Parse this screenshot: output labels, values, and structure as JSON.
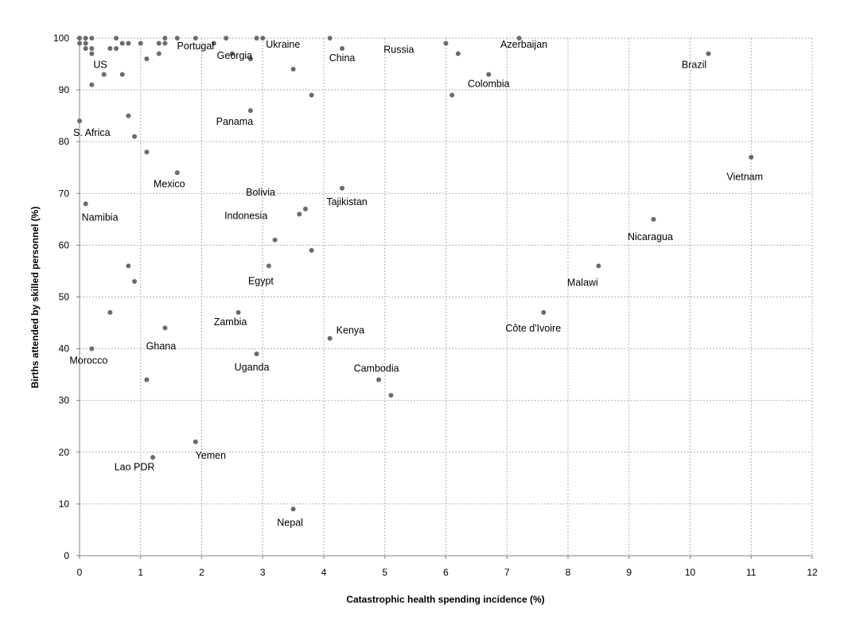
{
  "chart_data": {
    "type": "scatter",
    "title": "",
    "xlabel": "Catastrophic health spending incidence (%)",
    "ylabel": "Births attended by skilled personnel (%)",
    "xlim": [
      0,
      12
    ],
    "ylim": [
      0,
      100
    ],
    "x_ticks": [
      0,
      1,
      2,
      3,
      4,
      5,
      6,
      7,
      8,
      9,
      10,
      11,
      12
    ],
    "y_ticks": [
      0,
      10,
      20,
      30,
      40,
      50,
      60,
      70,
      80,
      90,
      100
    ],
    "grid": true,
    "marker_color": "#6b6b6b",
    "points": [
      {
        "x": 0.0,
        "y": 100,
        "label": ""
      },
      {
        "x": 0.1,
        "y": 100,
        "label": ""
      },
      {
        "x": 0.2,
        "y": 100,
        "label": ""
      },
      {
        "x": 0.0,
        "y": 99,
        "label": ""
      },
      {
        "x": 0.1,
        "y": 99,
        "label": ""
      },
      {
        "x": 0.1,
        "y": 98,
        "label": ""
      },
      {
        "x": 0.2,
        "y": 98,
        "label": ""
      },
      {
        "x": 0.2,
        "y": 97,
        "label": "US"
      },
      {
        "x": 0.5,
        "y": 98,
        "label": ""
      },
      {
        "x": 0.6,
        "y": 98,
        "label": ""
      },
      {
        "x": 0.6,
        "y": 100,
        "label": ""
      },
      {
        "x": 0.7,
        "y": 99,
        "label": ""
      },
      {
        "x": 0.8,
        "y": 99,
        "label": ""
      },
      {
        "x": 1.0,
        "y": 99,
        "label": ""
      },
      {
        "x": 1.3,
        "y": 99,
        "label": ""
      },
      {
        "x": 1.4,
        "y": 99,
        "label": ""
      },
      {
        "x": 1.4,
        "y": 100,
        "label": ""
      },
      {
        "x": 1.6,
        "y": 100,
        "label": ""
      },
      {
        "x": 0.4,
        "y": 93,
        "label": ""
      },
      {
        "x": 0.2,
        "y": 91,
        "label": ""
      },
      {
        "x": 0.7,
        "y": 93,
        "label": ""
      },
      {
        "x": 1.1,
        "y": 96,
        "label": ""
      },
      {
        "x": 1.3,
        "y": 97,
        "label": ""
      },
      {
        "x": 1.9,
        "y": 100,
        "label": "Portugal"
      },
      {
        "x": 2.2,
        "y": 99,
        "label": ""
      },
      {
        "x": 2.4,
        "y": 100,
        "label": ""
      },
      {
        "x": 2.5,
        "y": 97,
        "label": ""
      },
      {
        "x": 2.8,
        "y": 96,
        "label": "Georgia"
      },
      {
        "x": 2.9,
        "y": 100,
        "label": ""
      },
      {
        "x": 3.0,
        "y": 100,
        "label": "Ukraine"
      },
      {
        "x": 3.5,
        "y": 94,
        "label": ""
      },
      {
        "x": 3.8,
        "y": 89,
        "label": ""
      },
      {
        "x": 4.1,
        "y": 100,
        "label": ""
      },
      {
        "x": 4.3,
        "y": 98,
        "label": "China"
      },
      {
        "x": 6.0,
        "y": 99,
        "label": "Russia"
      },
      {
        "x": 6.2,
        "y": 97,
        "label": ""
      },
      {
        "x": 7.2,
        "y": 100,
        "label": "Azerbaijan"
      },
      {
        "x": 6.7,
        "y": 93,
        "label": "Colombia"
      },
      {
        "x": 6.1,
        "y": 89,
        "label": ""
      },
      {
        "x": 10.3,
        "y": 97,
        "label": "Brazil"
      },
      {
        "x": 0.0,
        "y": 84,
        "label": "S. Africa"
      },
      {
        "x": 0.8,
        "y": 85,
        "label": ""
      },
      {
        "x": 0.9,
        "y": 81,
        "label": ""
      },
      {
        "x": 1.1,
        "y": 78,
        "label": ""
      },
      {
        "x": 1.6,
        "y": 74,
        "label": "Mexico"
      },
      {
        "x": 2.8,
        "y": 86,
        "label": "Panama"
      },
      {
        "x": 11.0,
        "y": 77,
        "label": "Vietnam"
      },
      {
        "x": 0.1,
        "y": 68,
        "label": "Namibia"
      },
      {
        "x": 3.7,
        "y": 67,
        "label": "Bolivia"
      },
      {
        "x": 3.6,
        "y": 66,
        "label": "Indonesia"
      },
      {
        "x": 4.3,
        "y": 71,
        "label": "Tajikistan"
      },
      {
        "x": 3.2,
        "y": 61,
        "label": ""
      },
      {
        "x": 3.8,
        "y": 59,
        "label": ""
      },
      {
        "x": 9.4,
        "y": 65,
        "label": "Nicaragua"
      },
      {
        "x": 0.8,
        "y": 56,
        "label": ""
      },
      {
        "x": 0.9,
        "y": 53,
        "label": ""
      },
      {
        "x": 3.1,
        "y": 56,
        "label": "Egypt"
      },
      {
        "x": 8.5,
        "y": 56,
        "label": "Malawi"
      },
      {
        "x": 0.5,
        "y": 47,
        "label": ""
      },
      {
        "x": 1.4,
        "y": 44,
        "label": "Ghana"
      },
      {
        "x": 2.6,
        "y": 47,
        "label": "Zambia"
      },
      {
        "x": 4.1,
        "y": 42,
        "label": "Kenya"
      },
      {
        "x": 7.6,
        "y": 47,
        "label": "Côte d'Ivoire"
      },
      {
        "x": 0.2,
        "y": 40,
        "label": "Morocco"
      },
      {
        "x": 2.9,
        "y": 39,
        "label": "Uganda"
      },
      {
        "x": 1.1,
        "y": 34,
        "label": ""
      },
      {
        "x": 4.9,
        "y": 34,
        "label": "Cambodia"
      },
      {
        "x": 5.1,
        "y": 31,
        "label": ""
      },
      {
        "x": 1.9,
        "y": 22,
        "label": "Yemen"
      },
      {
        "x": 1.2,
        "y": 19,
        "label": "Lao PDR"
      },
      {
        "x": 3.5,
        "y": 9,
        "label": "Nepal"
      }
    ]
  }
}
